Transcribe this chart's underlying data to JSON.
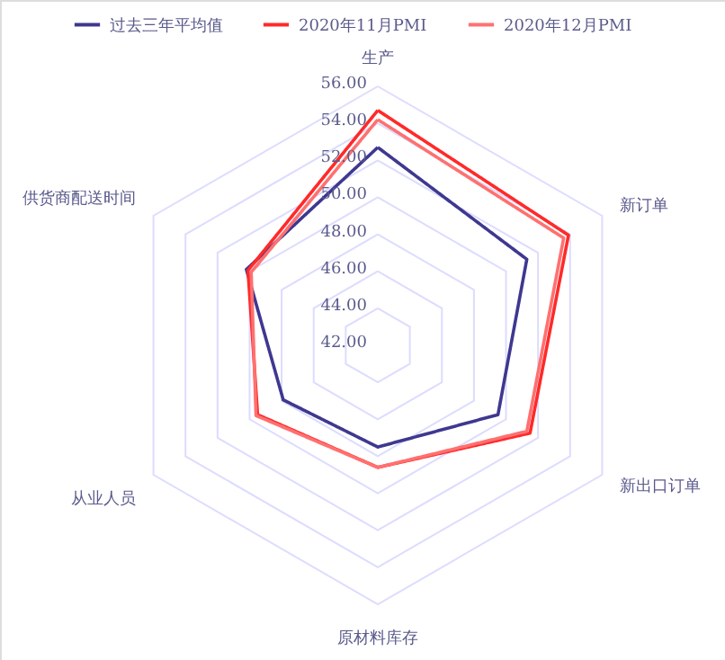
{
  "chart_data": {
    "type": "radar",
    "categories": [
      "生产",
      "新订单",
      "新出口订单",
      "原材料库存",
      "从业人员",
      "供货商配送时间"
    ],
    "series": [
      {
        "name": "过去三年平均值",
        "color": "#3f3890",
        "values": [
          52.7,
          51.3,
          49.5,
          47.5,
          47.9,
          50.2
        ]
      },
      {
        "name": "2020年11月PMI",
        "color": "#ff2a2a",
        "values": [
          54.7,
          53.9,
          51.5,
          48.6,
          49.5,
          50.1
        ]
      },
      {
        "name": "2020年12月PMI",
        "color": "#ff7070",
        "values": [
          54.2,
          53.6,
          51.3,
          48.6,
          49.6,
          49.9
        ]
      }
    ],
    "ylim": [
      42,
      56
    ],
    "yticks": [
      {
        "value": 42,
        "label": "42.00"
      },
      {
        "value": 44,
        "label": "44.00"
      },
      {
        "value": 46,
        "label": "46.00"
      },
      {
        "value": 48,
        "label": "48.00"
      },
      {
        "value": 50,
        "label": "50.00"
      },
      {
        "value": 52,
        "label": "52.00"
      },
      {
        "value": 54,
        "label": "54.00"
      },
      {
        "value": 56,
        "label": "56.00"
      }
    ],
    "grid": true,
    "legend": "top",
    "marker": "none",
    "line_style": "solid"
  }
}
